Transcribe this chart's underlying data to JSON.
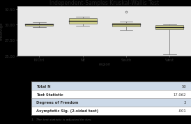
{
  "title": "Independent-Samples Kruskal-Wallis Test",
  "ylabel": "meanAge",
  "xlabel": "region",
  "categories": [
    "N.Ctrl",
    "NE",
    "South",
    "West"
  ],
  "box_data": {
    "N.Ctrl": {
      "q1": 29.85,
      "median": 30.0,
      "q3": 30.15,
      "whisker_low": 29.6,
      "whisker_high": 30.35,
      "outliers": []
    },
    "NE": {
      "q1": 30.2,
      "median": 30.6,
      "q3": 31.0,
      "whisker_low": 29.8,
      "whisker_high": 31.3,
      "outliers": []
    },
    "South": {
      "q1": 29.75,
      "median": 30.0,
      "q3": 30.25,
      "whisker_low": 29.1,
      "whisker_high": 30.45,
      "outliers": [
        32.1
      ]
    },
    "West": {
      "q1": 29.2,
      "median": 29.6,
      "q3": 29.9,
      "whisker_low": 25.2,
      "whisker_high": 30.05,
      "outliers": []
    }
  },
  "ylim": [
    25.0,
    33.0
  ],
  "yticks": [
    25.0,
    27.5,
    30.0,
    32.5
  ],
  "box_facecolor": "#d6d68c",
  "box_edgecolor": "#666666",
  "median_color": "#222222",
  "whisker_color": "#666666",
  "plot_bg": "#e8e8e8",
  "outer_bg": "#000000",
  "content_bg": "#c8c8c8",
  "table_rows": [
    [
      "Total N",
      "50"
    ],
    [
      "Test Statistic",
      "17.062"
    ],
    [
      "Degrees of Freedom",
      "3"
    ],
    [
      "Asymptotic Sig. (2-sided test)",
      ".001"
    ]
  ],
  "table_row_bg": [
    "#ccd9e8",
    "#ffffff",
    "#ccd9e8",
    "#ffffff"
  ],
  "table_label_color": "#333333",
  "table_value_color": "#333333",
  "footnote": "1.  The test statistic is adjusted for ties.",
  "title_fontsize": 5.5,
  "tick_fontsize": 3.8,
  "label_fontsize": 4.0,
  "table_fontsize": 3.8,
  "footnote_fontsize": 3.2
}
